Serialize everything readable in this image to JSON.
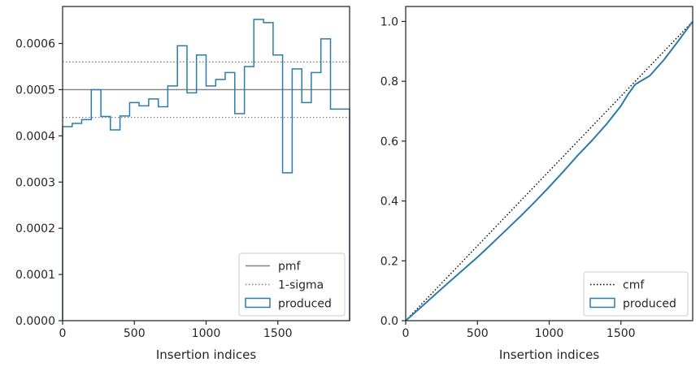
{
  "chart_data": [
    {
      "type": "step",
      "xlabel": "Insertion indices",
      "ylabel": "",
      "xlim": [
        0,
        2000
      ],
      "ylim": [
        0,
        0.00068
      ],
      "xticks": [
        0,
        500,
        1000,
        1500
      ],
      "xtick_labels": [
        "0",
        "500",
        "1000",
        "1500"
      ],
      "yticks": [
        0,
        0.0001,
        0.0002,
        0.0003,
        0.0004,
        0.0005,
        0.0006
      ],
      "ytick_labels": [
        "0.0000",
        "0.0001",
        "0.0002",
        "0.0003",
        "0.0004",
        "0.0005",
        "0.0006"
      ],
      "grid": false,
      "legend_position": "lower-right",
      "colors": {
        "produced": "#2b7bab",
        "pmf": "#808080",
        "sigma": "#808080"
      },
      "reference_lines": [
        {
          "name": "pmf",
          "y": 0.0005,
          "style": "solid"
        },
        {
          "name": "1-sigma",
          "y": 0.00056,
          "style": "dotted"
        },
        {
          "name": "1-sigma",
          "y": 0.00044,
          "style": "dotted"
        }
      ],
      "bin_edges": [
        0,
        67,
        133,
        200,
        267,
        333,
        400,
        467,
        533,
        600,
        667,
        733,
        800,
        867,
        933,
        1000,
        1067,
        1133,
        1200,
        1267,
        1333,
        1400,
        1467,
        1533,
        1600,
        1667,
        1733,
        1800,
        1867,
        1933,
        2000
      ],
      "series": [
        {
          "name": "produced",
          "values": [
            0.00042,
            0.000427,
            0.000435,
            0.0005,
            0.000442,
            0.000413,
            0.000443,
            0.000472,
            0.000465,
            0.00048,
            0.000463,
            0.000508,
            0.000595,
            0.000493,
            0.000575,
            0.000508,
            0.000522,
            0.000537,
            0.000448,
            0.00055,
            0.000652,
            0.000645,
            0.000575,
            0.00032,
            0.000545,
            0.000472,
            0.000537,
            0.00061,
            0.000458,
            0.000458
          ]
        }
      ],
      "legend": [
        {
          "label": "pmf",
          "kind": "line-solid"
        },
        {
          "label": "1-sigma",
          "kind": "line-dotted"
        },
        {
          "label": "produced",
          "kind": "patch"
        }
      ]
    },
    {
      "type": "line",
      "xlabel": "Insertion indices",
      "ylabel": "",
      "xlim": [
        0,
        2000
      ],
      "ylim": [
        0,
        1.05
      ],
      "xticks": [
        0,
        500,
        1000,
        1500
      ],
      "xtick_labels": [
        "0",
        "500",
        "1000",
        "1500"
      ],
      "yticks": [
        0,
        0.2,
        0.4,
        0.6,
        0.8,
        1.0
      ],
      "ytick_labels": [
        "0.0",
        "0.2",
        "0.4",
        "0.6",
        "0.8",
        "1.0"
      ],
      "grid": false,
      "legend_position": "lower-right",
      "colors": {
        "produced": "#2b7bab",
        "cmf": "#000000"
      },
      "series": [
        {
          "name": "cmf",
          "style": "dotted",
          "x": [
            0,
            2000
          ],
          "y": [
            0,
            1.0
          ]
        },
        {
          "name": "produced",
          "style": "solid",
          "x": [
            0,
            100,
            200,
            300,
            400,
            500,
            600,
            700,
            800,
            900,
            1000,
            1100,
            1200,
            1300,
            1400,
            1500,
            1550,
            1600,
            1700,
            1800,
            1900,
            2000
          ],
          "y": [
            0,
            0.042,
            0.085,
            0.128,
            0.17,
            0.212,
            0.257,
            0.303,
            0.349,
            0.397,
            0.447,
            0.499,
            0.553,
            0.603,
            0.657,
            0.718,
            0.757,
            0.79,
            0.818,
            0.872,
            0.935,
            1.0
          ]
        }
      ],
      "legend": [
        {
          "label": "cmf",
          "kind": "line-dotted"
        },
        {
          "label": "produced",
          "kind": "patch"
        }
      ]
    }
  ]
}
